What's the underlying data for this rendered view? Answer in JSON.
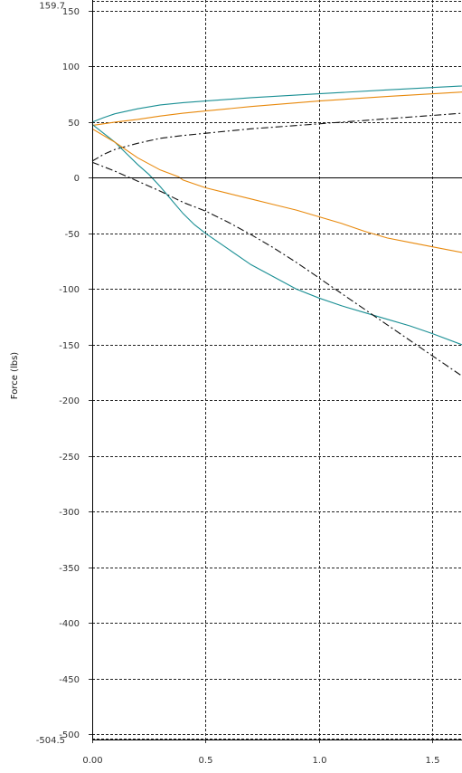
{
  "chart_data": {
    "type": "line",
    "title": "",
    "xlabel": "",
    "ylabel": "Force (lbs)",
    "xlim": [
      0.0,
      1.63
    ],
    "ylim": [
      -504.5,
      159.7
    ],
    "ymax_label": "159.7",
    "ymin_label": "-504.5",
    "x_ticks": [
      {
        "value": 0.0,
        "label": "0.00"
      },
      {
        "value": 0.5,
        "label": "0.5"
      },
      {
        "value": 1.0,
        "label": "1.0"
      },
      {
        "value": 1.5,
        "label": "1.5"
      }
    ],
    "y_ticks": [
      {
        "value": 150,
        "label": "150"
      },
      {
        "value": 100,
        "label": "100"
      },
      {
        "value": 50,
        "label": "50"
      },
      {
        "value": 0,
        "label": "0"
      },
      {
        "value": -50,
        "label": "-50"
      },
      {
        "value": -100,
        "label": "-100"
      },
      {
        "value": -150,
        "label": "-150"
      },
      {
        "value": -200,
        "label": "-200"
      },
      {
        "value": -250,
        "label": "-250"
      },
      {
        "value": -300,
        "label": "-300"
      },
      {
        "value": -350,
        "label": "-350"
      },
      {
        "value": -400,
        "label": "-400"
      },
      {
        "value": -450,
        "label": "-450"
      },
      {
        "value": -500,
        "label": "-500"
      }
    ],
    "grid": true,
    "colors": {
      "teal": "#1a8f94",
      "orange": "#e8890c",
      "black": "#111111",
      "grid": "#222222",
      "zero_line": "#000000"
    },
    "series": [
      {
        "color": "#1a8f94",
        "style": "solid",
        "points": [
          [
            0.0,
            50
          ],
          [
            0.05,
            54
          ],
          [
            0.1,
            57.5
          ],
          [
            0.2,
            62
          ],
          [
            0.3,
            65.5
          ],
          [
            0.4,
            67.5
          ],
          [
            0.5,
            69
          ],
          [
            0.7,
            72
          ],
          [
            1.0,
            75.5
          ],
          [
            1.3,
            79
          ],
          [
            1.63,
            82.5
          ]
        ]
      },
      {
        "color": "#e8890c",
        "style": "solid",
        "points": [
          [
            0.0,
            47
          ],
          [
            0.1,
            50
          ],
          [
            0.2,
            52.5
          ],
          [
            0.3,
            55.5
          ],
          [
            0.4,
            58
          ],
          [
            0.5,
            60
          ],
          [
            0.7,
            64
          ],
          [
            1.0,
            69
          ],
          [
            1.3,
            73
          ],
          [
            1.63,
            77
          ]
        ]
      },
      {
        "color": "#111111",
        "style": "dashdot",
        "points": [
          [
            0.0,
            15
          ],
          [
            0.05,
            21
          ],
          [
            0.1,
            25.5
          ],
          [
            0.2,
            31
          ],
          [
            0.3,
            35.5
          ],
          [
            0.4,
            38
          ],
          [
            0.5,
            40
          ],
          [
            0.7,
            44
          ],
          [
            1.0,
            48.5
          ],
          [
            1.3,
            53
          ],
          [
            1.63,
            58
          ]
        ]
      },
      {
        "color": "#1a8f94",
        "style": "solid",
        "points": [
          [
            0.0,
            48
          ],
          [
            0.05,
            40
          ],
          [
            0.1,
            32
          ],
          [
            0.15,
            22
          ],
          [
            0.2,
            12
          ],
          [
            0.25,
            3
          ],
          [
            0.3,
            -8
          ],
          [
            0.35,
            -20
          ],
          [
            0.4,
            -32
          ],
          [
            0.45,
            -42
          ],
          [
            0.5,
            -50
          ],
          [
            0.6,
            -64
          ],
          [
            0.7,
            -78
          ],
          [
            0.8,
            -89
          ],
          [
            0.9,
            -100
          ],
          [
            1.0,
            -108
          ],
          [
            1.1,
            -115
          ],
          [
            1.2,
            -121
          ],
          [
            1.3,
            -127
          ],
          [
            1.4,
            -133
          ],
          [
            1.5,
            -140
          ],
          [
            1.63,
            -150
          ]
        ]
      },
      {
        "color": "#e8890c",
        "style": "solid",
        "points": [
          [
            0.0,
            44
          ],
          [
            0.1,
            32
          ],
          [
            0.2,
            18
          ],
          [
            0.3,
            7
          ],
          [
            0.38,
            1
          ],
          [
            0.4,
            -2
          ],
          [
            0.5,
            -9
          ],
          [
            0.6,
            -14
          ],
          [
            0.7,
            -19
          ],
          [
            0.8,
            -24
          ],
          [
            0.9,
            -29
          ],
          [
            1.0,
            -35
          ],
          [
            1.1,
            -41
          ],
          [
            1.2,
            -48
          ],
          [
            1.3,
            -54
          ],
          [
            1.4,
            -58
          ],
          [
            1.5,
            -62
          ],
          [
            1.63,
            -67
          ]
        ]
      },
      {
        "color": "#111111",
        "style": "dashdot",
        "points": [
          [
            0.0,
            14
          ],
          [
            0.1,
            6
          ],
          [
            0.2,
            -3
          ],
          [
            0.3,
            -12
          ],
          [
            0.4,
            -22
          ],
          [
            0.5,
            -30
          ],
          [
            0.6,
            -40
          ],
          [
            0.7,
            -51
          ],
          [
            0.8,
            -63
          ],
          [
            0.9,
            -76
          ],
          [
            1.0,
            -90
          ],
          [
            1.1,
            -104
          ],
          [
            1.2,
            -118
          ],
          [
            1.3,
            -132
          ],
          [
            1.4,
            -146
          ],
          [
            1.5,
            -160
          ],
          [
            1.63,
            -178
          ]
        ]
      }
    ]
  }
}
